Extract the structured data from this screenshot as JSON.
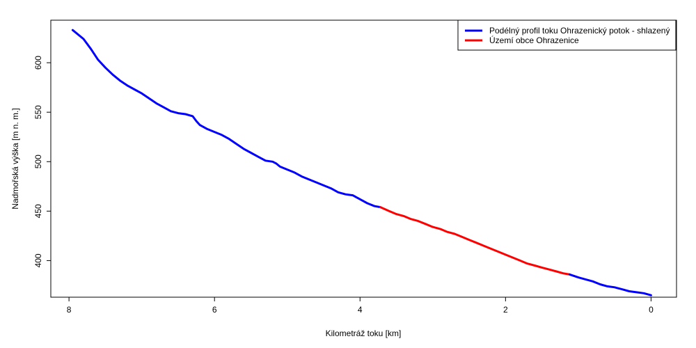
{
  "chart_data": {
    "type": "line",
    "title": "",
    "xlabel": "Kilometráž toku [km]",
    "ylabel": "Nadmořská výška [m n. m.]",
    "xlim": [
      8.25,
      -0.35
    ],
    "ylim": [
      363,
      643
    ],
    "x_reversed": true,
    "x_ticks": [
      8,
      6,
      4,
      2,
      0
    ],
    "y_ticks": [
      400,
      450,
      500,
      550,
      600
    ],
    "grid": false,
    "legend_position": "top-right",
    "series": [
      {
        "name": "Podélný profil toku Ohrazenický potok - shlazený",
        "color": "#0000ff",
        "x": [
          7.95,
          7.8,
          7.7,
          7.6,
          7.5,
          7.4,
          7.3,
          7.2,
          7.1,
          7.0,
          6.9,
          6.8,
          6.7,
          6.6,
          6.5,
          6.4,
          6.3,
          6.25,
          6.2,
          6.1,
          6.0,
          5.9,
          5.8,
          5.7,
          5.6,
          5.5,
          5.4,
          5.3,
          5.2,
          5.15,
          5.1,
          5.0,
          4.9,
          4.8,
          4.7,
          4.6,
          4.5,
          4.4,
          4.3,
          4.2,
          4.1,
          4.05,
          4.0,
          3.9,
          3.8,
          3.72
        ],
        "y": [
          633,
          624,
          614,
          603,
          595,
          588,
          582,
          577,
          573,
          569,
          564,
          559,
          555,
          551,
          549,
          548,
          546,
          541,
          537,
          533,
          530,
          527,
          523,
          518,
          513,
          509,
          505,
          501,
          500,
          498,
          495,
          492,
          489,
          485,
          482,
          479,
          476,
          473,
          469,
          467,
          466,
          464,
          462,
          458,
          455,
          454
        ]
      },
      {
        "name": "Území obce Ohrazenice",
        "color": "#ff0000",
        "x": [
          3.72,
          3.6,
          3.5,
          3.4,
          3.3,
          3.2,
          3.1,
          3.0,
          2.9,
          2.8,
          2.7,
          2.6,
          2.5,
          2.4,
          2.3,
          2.2,
          2.1,
          2.0,
          1.9,
          1.8,
          1.7,
          1.6,
          1.5,
          1.4,
          1.3,
          1.2,
          1.12
        ],
        "y": [
          454,
          450,
          447,
          445,
          442,
          440,
          437,
          434,
          432,
          429,
          427,
          424,
          421,
          418,
          415,
          412,
          409,
          406,
          403,
          400,
          397,
          395,
          393,
          391,
          389,
          387,
          386
        ]
      },
      {
        "name": "",
        "color": "#0000ff",
        "x": [
          1.12,
          1.0,
          0.9,
          0.8,
          0.7,
          0.6,
          0.5,
          0.4,
          0.3,
          0.2,
          0.1,
          0.0
        ],
        "y": [
          386,
          383,
          381,
          379,
          376,
          374,
          373,
          371,
          369,
          368,
          367,
          365
        ]
      }
    ]
  }
}
